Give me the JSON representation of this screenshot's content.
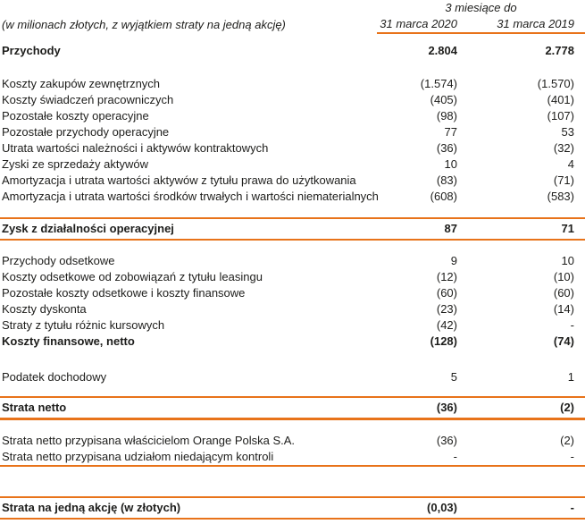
{
  "meta": {
    "unit_note": "(w milionach złotych, z wyjątkiem straty na jedną akcję)",
    "period_label": "3 miesiące do",
    "col_2020": "31 marca 2020",
    "col_2019": "31 marca 2019",
    "accent_color": "#e8731a",
    "text_color": "#1d1d1b"
  },
  "table": {
    "columns": [
      "31 marca 2020",
      "31 marca 2019"
    ],
    "rows": [
      {
        "label": "Przychody",
        "v2020": "2.804",
        "v2019": "2.778",
        "emphasis": true,
        "spacing_before": "s"
      },
      {
        "label": "Koszty zakupów zewnętrznych",
        "v2020": "(1.574)",
        "v2019": "(1.570)",
        "spacing_before": "l"
      },
      {
        "label": "Koszty świadczeń pracowniczych",
        "v2020": "(405)",
        "v2019": "(401)"
      },
      {
        "label": "Pozostałe koszty operacyjne",
        "v2020": "(98)",
        "v2019": "(107)"
      },
      {
        "label": "Pozostałe przychody operacyjne",
        "v2020": "77",
        "v2019": "53"
      },
      {
        "label": "Utrata wartości należności i aktywów kontraktowych",
        "v2020": "(36)",
        "v2019": "(32)"
      },
      {
        "label": "Zyski ze sprzedaży aktywów",
        "v2020": "10",
        "v2019": "4"
      },
      {
        "label": "Amortyzacja i utrata wartości aktywów z tytułu prawa do użytkowania",
        "v2020": "(83)",
        "v2019": "(71)"
      },
      {
        "label": "Amortyzacja i utrata wartości środków trwałych i wartości niematerialnych",
        "v2020": "(608)",
        "v2019": "(583)"
      },
      {
        "label": "Zysk z działalności operacyjnej",
        "v2020": "87",
        "v2019": "71",
        "emphasis": true,
        "separator": "box",
        "spacing_before": "m"
      },
      {
        "label": "Przychody odsetkowe",
        "v2020": "9",
        "v2019": "10",
        "spacing_before": "m"
      },
      {
        "label": "Koszty odsetkowe od zobowiązań z tytułu leasingu",
        "v2020": "(12)",
        "v2019": "(10)"
      },
      {
        "label": "Pozostałe koszty odsetkowe i koszty finansowe",
        "v2020": "(60)",
        "v2019": "(60)"
      },
      {
        "label": "Koszty dyskonta",
        "v2020": "(23)",
        "v2019": "(14)"
      },
      {
        "label": "Straty z tytułu różnic kursowych",
        "v2020": "(42)",
        "v2019": "-"
      },
      {
        "label": "Koszty finansowe, netto",
        "v2020": "(128)",
        "v2019": "(74)",
        "emphasis": true
      },
      {
        "label": "Podatek dochodowy",
        "v2020": "5",
        "v2019": "1",
        "spacing_before": "xl"
      },
      {
        "label": "Strata netto",
        "v2020": "(36)",
        "v2019": "(2)",
        "emphasis": true,
        "separator": "box-thick",
        "spacing_before": "ms"
      },
      {
        "label": "Strata netto przypisana właścicielom Orange Polska S.A.",
        "v2020": "(36)",
        "v2019": "(2)",
        "spacing_before": "m"
      },
      {
        "label": "Strata netto przypisana udziałom niedającym kontroli",
        "v2020": "-",
        "v2019": "-",
        "separator": "bottom"
      },
      {
        "label": "Strata na jedną akcję (w złotych)",
        "v2020": "(0,03)",
        "v2019": "-",
        "emphasis": true,
        "separator": "box",
        "spacing_before": "xxl"
      }
    ]
  }
}
